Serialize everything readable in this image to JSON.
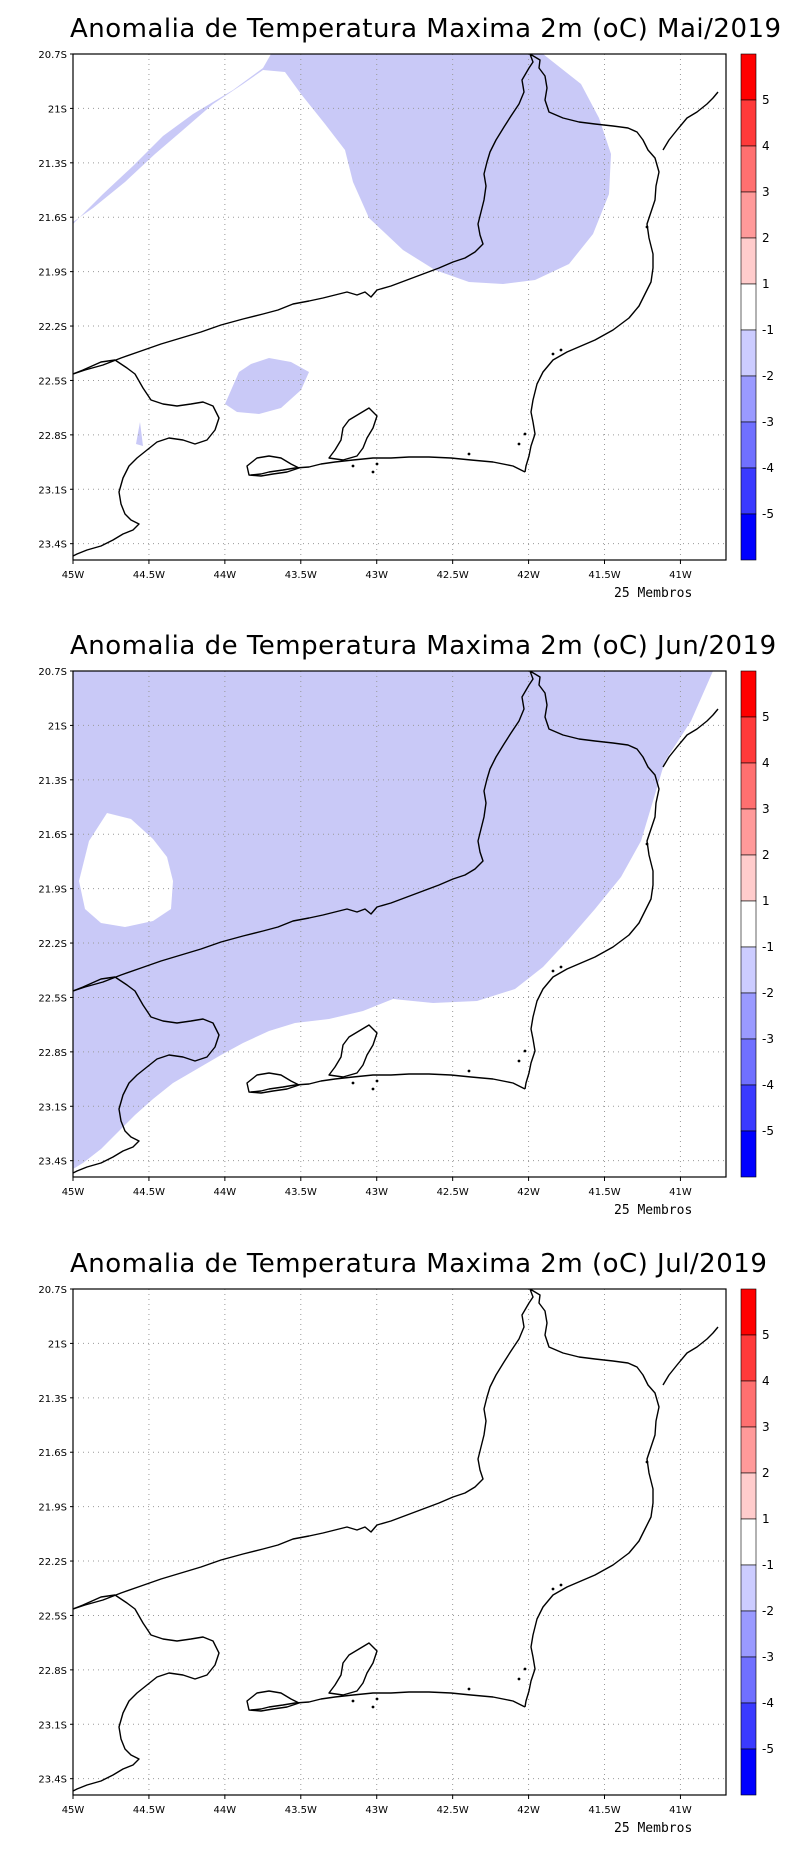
{
  "panels": [
    {
      "title": "Anomalia de Temperatura Maxima 2m (oC) Mai/2019",
      "footer": "25 Membros",
      "anomaly_regions": [
        "1-2 negative",
        "1-2 negative small"
      ]
    },
    {
      "title": "Anomalia de Temperatura Maxima 2m (oC) Jun/2019",
      "footer": "25 Membros",
      "anomaly_regions": [
        "1-2 negative"
      ]
    },
    {
      "title": "Anomalia de Temperatura Maxima 2m (oC) Jul/2019",
      "footer": "25 Membros",
      "anomaly_regions": []
    }
  ],
  "lat_labels": [
    "20.7S",
    "21S",
    "21.3S",
    "21.6S",
    "21.9S",
    "22.2S",
    "22.5S",
    "22.8S",
    "23.1S",
    "23.4S"
  ],
  "lon_labels": [
    "45W",
    "44.5W",
    "44W",
    "43.5W",
    "43W",
    "42.5W",
    "42W",
    "41.5W",
    "41W"
  ],
  "colorbar": {
    "labels": [
      "5",
      "4",
      "3",
      "2",
      "1",
      "-1",
      "-2",
      "-3",
      "-4",
      "-5"
    ],
    "colors": [
      "#ff0000",
      "#ff3a3a",
      "#ff7070",
      "#ff9a9a",
      "#ffcccc",
      "#ffffff",
      "#ccccff",
      "#9a9aff",
      "#7070ff",
      "#3a3aff",
      "#0000ff"
    ]
  },
  "fill_color": "#c9c9f7"
}
